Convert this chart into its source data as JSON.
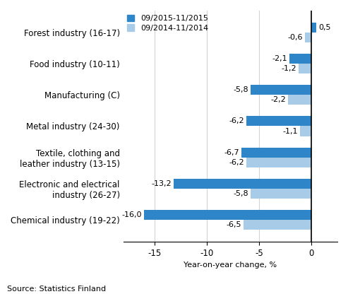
{
  "categories": [
    "Chemical industry (19-22)",
    "Electronic and electrical\nindustry (26-27)",
    "Textile, clothing and\nleather industry (13-15)",
    "Metal industry (24-30)",
    "Manufacturing (C)",
    "Food industry (10-11)",
    "Forest industry (16-17)"
  ],
  "series_2015": [
    -16.0,
    -13.2,
    -6.7,
    -6.2,
    -5.8,
    -2.1,
    0.5
  ],
  "series_2014": [
    -6.5,
    -5.8,
    -6.2,
    -1.1,
    -2.2,
    -1.2,
    -0.6
  ],
  "labels_2015": [
    "-16,0",
    "-13,2",
    "-6,7",
    "-6,2",
    "-5,8",
    "-2,1",
    "0,5"
  ],
  "labels_2014": [
    "-6,5",
    "-5,8",
    "-6,2",
    "-1,1",
    "-2,2",
    "-1,2",
    "-0,6"
  ],
  "color_2015": "#2E86C8",
  "color_2014": "#A8CCE8",
  "legend_labels": [
    "09/2015-11/2015",
    "09/2014-11/2014"
  ],
  "xlabel": "Year-on-year change, %",
  "xlim": [
    -18,
    2.5
  ],
  "xticks": [
    -15,
    -10,
    -5,
    0
  ],
  "source": "Source: Statistics Finland",
  "label_fontsize": 8,
  "tick_fontsize": 8.5,
  "bar_height": 0.32
}
